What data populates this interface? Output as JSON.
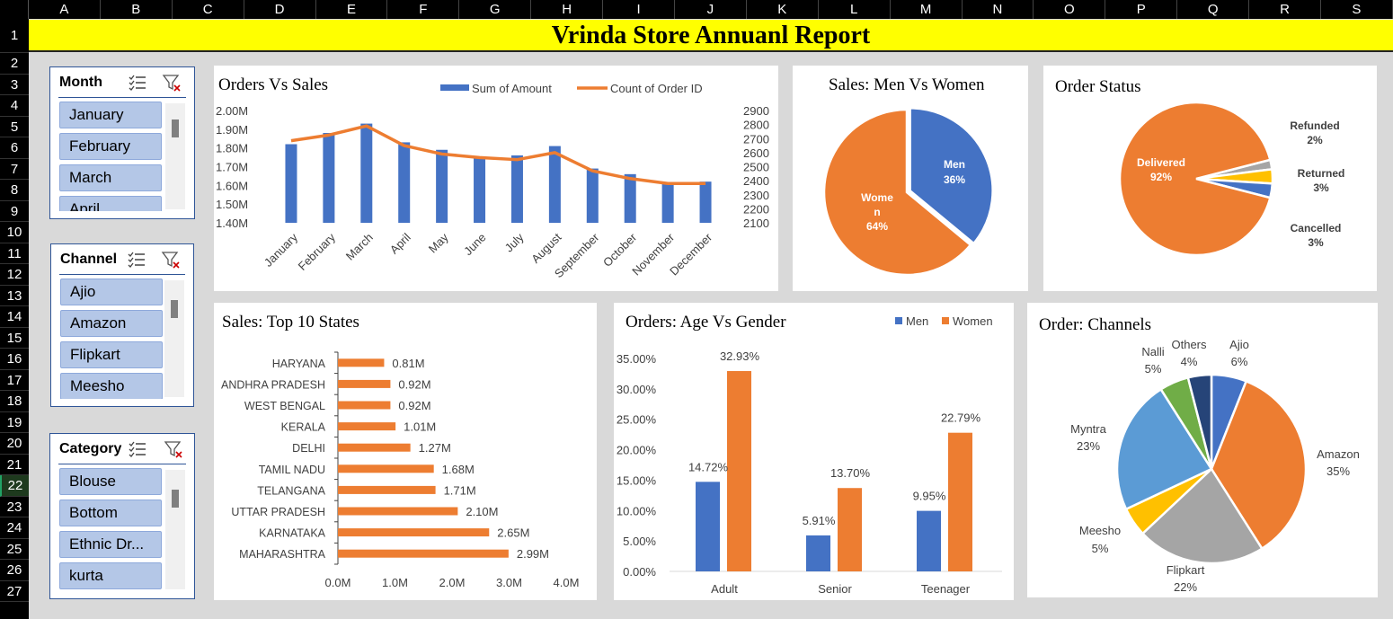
{
  "columns": [
    "A",
    "B",
    "C",
    "D",
    "E",
    "F",
    "G",
    "H",
    "I",
    "J",
    "K",
    "L",
    "M",
    "N",
    "O",
    "P",
    "Q",
    "R",
    "S"
  ],
  "rows": [
    "1",
    "2",
    "3",
    "4",
    "5",
    "6",
    "7",
    "8",
    "9",
    "10",
    "11",
    "12",
    "13",
    "14",
    "15",
    "16",
    "17",
    "18",
    "19",
    "20",
    "21",
    "22",
    "23",
    "24",
    "25",
    "26",
    "27"
  ],
  "selected_row": "22",
  "report_title": "Vrinda Store Annuanl Report",
  "slicers": {
    "month": {
      "title": "Month",
      "items": [
        "January",
        "February",
        "March",
        "April"
      ]
    },
    "channel": {
      "title": "Channel",
      "items": [
        "Ajio",
        "Amazon",
        "Flipkart",
        "Meesho"
      ]
    },
    "category": {
      "title": "Category",
      "items": [
        "Blouse",
        "Bottom",
        "Ethnic Dr...",
        "kurta"
      ]
    }
  },
  "icons": {
    "multiselect": "multi-select-icon",
    "clear_filter": "clear-filter-icon"
  },
  "colors": {
    "blue": "#4472c4",
    "orange": "#ed7d31",
    "gray": "#a5a5a5",
    "yellow": "#ffc000",
    "lightblue": "#5b9bd5",
    "green": "#70ad47",
    "navy": "#264478",
    "title_bg": "#ffff00",
    "slicer_item": "#b4c7e7"
  },
  "chart_data": [
    {
      "id": "orders_vs_sales",
      "type": "bar",
      "title": "Orders Vs Sales",
      "categories": [
        "January",
        "February",
        "March",
        "April",
        "May",
        "June",
        "July",
        "August",
        "September",
        "October",
        "November",
        "December"
      ],
      "series": [
        {
          "name": "Sum of Amount",
          "type": "bar",
          "axis": "left",
          "values": [
            1.82,
            1.88,
            1.93,
            1.83,
            1.79,
            1.75,
            1.76,
            1.81,
            1.69,
            1.66,
            1.61,
            1.62
          ]
        },
        {
          "name": "Count of Order ID",
          "type": "line",
          "axis": "right",
          "values": [
            2685,
            2725,
            2790,
            2650,
            2590,
            2565,
            2550,
            2600,
            2470,
            2415,
            2380,
            2380
          ]
        }
      ],
      "left_ticks": [
        "1.40M",
        "1.50M",
        "1.60M",
        "1.70M",
        "1.80M",
        "1.90M",
        "2.00M"
      ],
      "left_ylim": [
        1.4,
        2.0
      ],
      "right_ticks": [
        "2100",
        "2200",
        "2300",
        "2400",
        "2500",
        "2600",
        "2700",
        "2800",
        "2900"
      ],
      "right_ylim": [
        2100,
        2900
      ]
    },
    {
      "id": "sales_men_women",
      "type": "pie",
      "title": "Sales: Men Vs Women",
      "slices": [
        {
          "label": "Men",
          "pct_label": "36%",
          "value": 36
        },
        {
          "label": "Wome\nn",
          "pct_label": "64%",
          "value": 64
        }
      ]
    },
    {
      "id": "order_status",
      "type": "pie",
      "title": "Order Status",
      "slices": [
        {
          "label": "Delivered",
          "pct_label": "92%",
          "value": 92
        },
        {
          "label": "Refunded",
          "pct_label": "2%",
          "value": 2
        },
        {
          "label": "Returned",
          "pct_label": "3%",
          "value": 3
        },
        {
          "label": "Cancelled",
          "pct_label": "3%",
          "value": 3
        }
      ]
    },
    {
      "id": "top_states",
      "type": "bar",
      "orientation": "horizontal",
      "title": "Sales: Top 10 States",
      "categories": [
        "HARYANA",
        "ANDHRA PRADESH",
        "WEST BENGAL",
        "KERALA",
        "DELHI",
        "TAMIL NADU",
        "TELANGANA",
        "UTTAR PRADESH",
        "KARNATAKA",
        "MAHARASHTRA"
      ],
      "values": [
        0.81,
        0.92,
        0.92,
        1.01,
        1.27,
        1.68,
        1.71,
        2.1,
        2.65,
        2.99
      ],
      "value_labels": [
        "0.81M",
        "0.92M",
        "0.92M",
        "1.01M",
        "1.27M",
        "1.68M",
        "1.71M",
        "2.10M",
        "2.65M",
        "2.99M"
      ],
      "xticks": [
        "0.0M",
        "1.0M",
        "2.0M",
        "3.0M",
        "4.0M"
      ],
      "xlim": [
        0,
        4
      ]
    },
    {
      "id": "age_gender",
      "type": "bar",
      "title": "Orders: Age Vs Gender",
      "categories": [
        "Adult",
        "Senior",
        "Teenager"
      ],
      "series": [
        {
          "name": "Men",
          "values": [
            14.72,
            5.91,
            9.95
          ],
          "labels": [
            "14.72%",
            "5.91%",
            "9.95%"
          ]
        },
        {
          "name": "Women",
          "values": [
            32.93,
            13.7,
            22.79
          ],
          "labels": [
            "32.93%",
            "13.70%",
            "22.79%"
          ]
        }
      ],
      "yticks": [
        "0.00%",
        "5.00%",
        "10.00%",
        "15.00%",
        "20.00%",
        "25.00%",
        "30.00%",
        "35.00%"
      ],
      "ylim": [
        0,
        35
      ]
    },
    {
      "id": "channels",
      "type": "pie",
      "title": "Order: Channels",
      "slices": [
        {
          "label": "Ajio",
          "pct_label": "6%",
          "value": 6
        },
        {
          "label": "Amazon",
          "pct_label": "35%",
          "value": 35
        },
        {
          "label": "Flipkart",
          "pct_label": "22%",
          "value": 22
        },
        {
          "label": "Meesho",
          "pct_label": "5%",
          "value": 5
        },
        {
          "label": "Myntra",
          "pct_label": "23%",
          "value": 23
        },
        {
          "label": "Nalli",
          "pct_label": "5%",
          "value": 5
        },
        {
          "label": "Others",
          "pct_label": "4%",
          "value": 4
        }
      ]
    }
  ]
}
